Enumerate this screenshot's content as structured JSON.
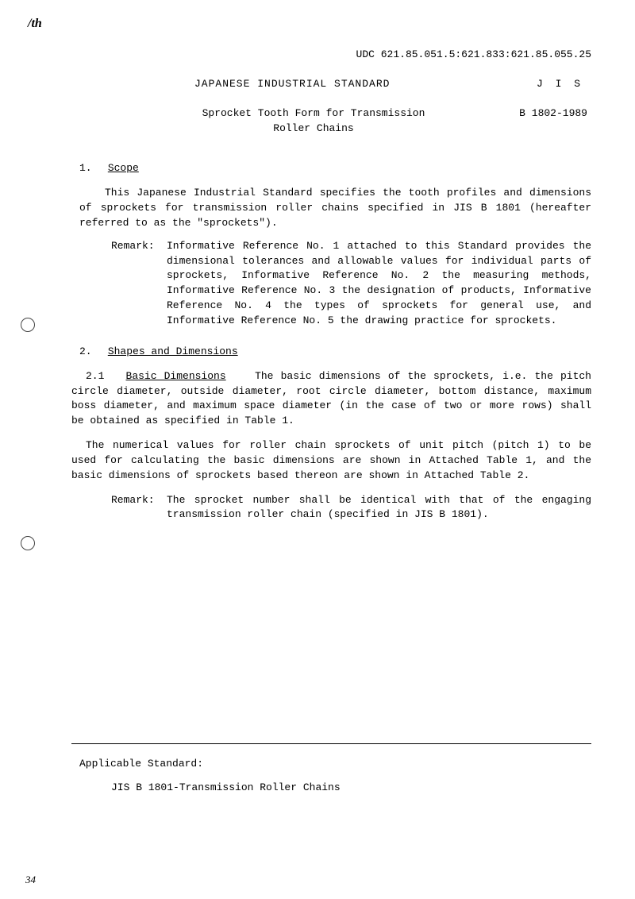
{
  "page_mark": "/th",
  "udc": "UDC 621.85.051.5:621.833:621.85.055.25",
  "header_title": "JAPANESE INDUSTRIAL STANDARD",
  "jis_label": "J I S",
  "subtitle_line1": "Sprocket Tooth Form for Transmission",
  "subtitle_line2": "Roller Chains",
  "standard_number": "B 1802-1989",
  "section1_num": "1.",
  "section1_title": "Scope",
  "scope_para": "This Japanese Industrial Standard specifies the tooth profiles and dimensions of sprockets for transmission roller chains specified in JIS B 1801 (hereafter referred to as the \"sprockets\").",
  "remark_label": "Remark:",
  "remark1_body": "Informative Reference No. 1 attached to this Standard provides the dimensional tolerances and allowable values for individual parts of sprockets, Informative Reference No. 2 the measuring methods, Informative Reference No. 3 the designation of products, Informative Reference No. 4 the types of sprockets for general use, and Informative Reference No. 5 the drawing practice for sprockets.",
  "section2_num": "2.",
  "section2_title": "Shapes and Dimensions",
  "subsect21_num": "2.1",
  "subsect21_title": "Basic Dimensions",
  "subsect21_body": "The basic dimensions of the sprockets, i.e. the pitch circle diameter, outside diameter, root circle diameter, bottom distance, maximum boss diameter, and maximum space diameter (in the case of two or more rows) shall be obtained as specified in Table 1.",
  "para2": "The numerical values for roller chain sprockets of unit pitch (pitch 1) to be used for calculating the basic dimensions are shown in Attached Table 1, and the basic dimensions of sprockets based thereon are shown in Attached Table 2.",
  "remark2_body": "The sprocket number shall be identical with that of the engaging transmission roller chain (specified in JIS B 1801).",
  "applicable_label": "Applicable Standard:",
  "applicable_ref": "JIS B 1801-Transmission Roller Chains",
  "page_number": "34"
}
